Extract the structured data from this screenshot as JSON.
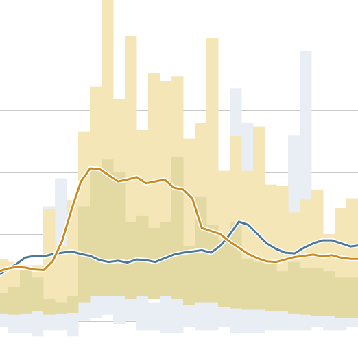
{
  "chart_data": {
    "type": "area",
    "title": "",
    "xlabel": "",
    "ylabel": "",
    "grid": true,
    "legend": "none",
    "x": [
      0,
      1,
      2,
      3,
      4,
      5,
      6,
      7,
      8,
      9,
      10,
      11,
      12,
      13,
      14,
      15,
      16,
      17,
      18,
      19,
      20,
      21,
      22,
      23,
      24,
      25,
      26,
      27,
      28,
      29,
      30
    ],
    "ylim": [
      0,
      5.2
    ],
    "yticks": [
      0.6,
      1.0,
      2.0,
      3.0,
      4.0,
      5.0
    ],
    "bands": [
      {
        "color": "#e9eef4",
        "upper": [
          1.0,
          1.1,
          1.45,
          0.9,
          2.45,
          2.9,
          2.0,
          1.75,
          1.4,
          1.4,
          1.3,
          1.3,
          1.0,
          0.9,
          1.0,
          1.1,
          2.3,
          1.6,
          1.2,
          1.1,
          4.35,
          3.8,
          2.5,
          1.6,
          2.7,
          3.6,
          4.95,
          2.3,
          1.5,
          1.2,
          2.1
        ],
        "lower": [
          0.5,
          0.4,
          0.4,
          0.35,
          0.45,
          0.45,
          0.35,
          0.6,
          0.65,
          0.7,
          0.55,
          0.6,
          0.45,
          0.45,
          0.4,
          0.4,
          0.5,
          0.45,
          0.45,
          0.5,
          0.4,
          0.4,
          0.4,
          0.45,
          0.45,
          0.45,
          0.45,
          0.5,
          0.45,
          0.45,
          0.5
        ]
      },
      {
        "color": "#f5e6b8",
        "upper": [
          1.6,
          1.55,
          1.5,
          1.5,
          2.4,
          1.8,
          2.55,
          3.65,
          4.38,
          5.78,
          4.18,
          5.2,
          3.68,
          4.6,
          4.47,
          4.55,
          3.54,
          3.8,
          5.16,
          3.02,
          3.58,
          3.02,
          3.74,
          2.8,
          2.78,
          2.35,
          2.56,
          2.72,
          2.0,
          2.42,
          2.58
        ],
        "lower": [
          0.95,
          1.0,
          0.9,
          0.9,
          0.88,
          0.88,
          0.9,
          1.0,
          1.1,
          1.3,
          1.15,
          1.0,
          1.15,
          1.0,
          1.1,
          1.0,
          1.0,
          1.05,
          1.0,
          0.95,
          0.9,
          0.95,
          1.0,
          1.0,
          0.95,
          0.95,
          0.9,
          0.9,
          0.85,
          0.85,
          0.85
        ]
      },
      {
        "color": "#e3d9a3",
        "upper": [
          1.05,
          1.15,
          1.45,
          1.3,
          0.95,
          0.9,
          1.0,
          2.45,
          3.05,
          3.2,
          3.0,
          2.2,
          2.3,
          2.1,
          2.2,
          3.25,
          1.8,
          2.6,
          2.15,
          1.9,
          2.2,
          1.6,
          1.55,
          1.58,
          1.4,
          1.55,
          1.45,
          1.45,
          1.4,
          1.3,
          1.3
        ],
        "lower": [
          0.72,
          0.7,
          0.72,
          0.75,
          0.7,
          0.72,
          0.73,
          0.9,
          1.0,
          1.0,
          1.0,
          0.95,
          1.0,
          0.95,
          1.0,
          0.95,
          0.85,
          0.9,
          0.9,
          0.82,
          0.8,
          0.78,
          0.78,
          0.75,
          0.75,
          0.72,
          0.7,
          0.68,
          0.68,
          0.65,
          0.65
        ]
      }
    ],
    "series": [
      {
        "color": "#4b7898",
        "x": [
          0,
          1,
          2,
          3,
          4,
          5,
          6,
          7,
          8,
          9,
          10,
          11,
          12,
          13,
          14,
          15,
          16,
          17,
          18,
          19,
          20,
          21,
          22,
          23,
          24,
          25,
          26,
          27,
          28,
          29,
          30,
          31,
          32,
          33,
          34,
          35,
          36,
          37,
          38,
          39
        ],
        "values": [
          1.33,
          1.42,
          1.51,
          1.62,
          1.65,
          1.64,
          1.68,
          1.7,
          1.72,
          1.68,
          1.65,
          1.58,
          1.55,
          1.57,
          1.54,
          1.59,
          1.58,
          1.55,
          1.61,
          1.67,
          1.7,
          1.72,
          1.74,
          1.7,
          1.81,
          1.99,
          2.2,
          2.15,
          2.0,
          1.85,
          1.76,
          1.7,
          1.69,
          1.78,
          1.85,
          1.9,
          1.9,
          1.85,
          1.8,
          1.82
        ]
      },
      {
        "color": "#cc8a1e",
        "x": [
          0,
          1,
          2,
          3,
          4,
          5,
          6,
          7,
          8,
          9,
          10,
          11,
          12,
          13,
          14,
          15,
          16,
          17,
          18,
          19,
          20,
          21,
          22,
          23,
          24,
          25,
          26,
          27,
          28,
          29,
          30,
          31,
          32,
          33,
          34,
          35,
          36,
          37,
          38,
          39
        ],
        "values": [
          1.39,
          1.44,
          1.47,
          1.46,
          1.43,
          1.42,
          1.57,
          1.9,
          2.4,
          2.85,
          3.06,
          3.05,
          2.95,
          2.85,
          2.88,
          2.92,
          2.82,
          2.85,
          2.88,
          2.75,
          2.72,
          2.57,
          2.1,
          2.05,
          2.0,
          1.88,
          1.78,
          1.68,
          1.61,
          1.56,
          1.55,
          1.59,
          1.63,
          1.65,
          1.67,
          1.64,
          1.66,
          1.62,
          1.6,
          1.6
        ]
      }
    ]
  }
}
